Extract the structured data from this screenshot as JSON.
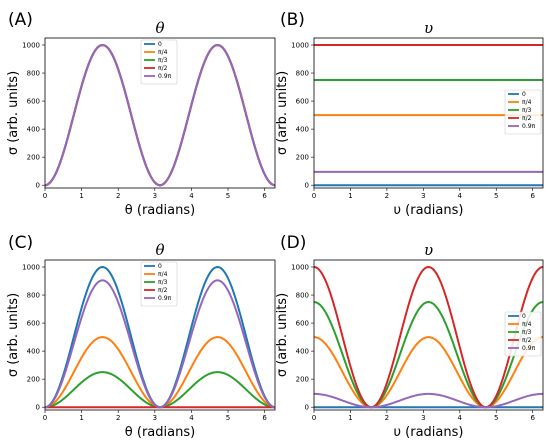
{
  "chart_data": [
    {
      "type": "line",
      "panel_label": "(A)",
      "title": "θ",
      "xlabel": "θ (radians)",
      "ylabel": "σ (arb. units)",
      "xlim": [
        0,
        6.283
      ],
      "ylim": [
        -20,
        1050
      ],
      "xticks": [
        0,
        1,
        2,
        3,
        4,
        5,
        6
      ],
      "yticks": [
        0,
        200,
        400,
        600,
        800,
        1000
      ],
      "formula": "1000 * sin(x)^2",
      "legend_position": "top-center",
      "series": [
        {
          "name": "0",
          "color": "#1f77b4",
          "x": [
            0,
            0.785,
            1.571,
            2.356,
            3.142,
            3.927,
            4.712,
            5.498,
            6.283
          ],
          "y": [
            0,
            500,
            1000,
            500,
            0,
            500,
            1000,
            500,
            0
          ]
        },
        {
          "name": "π/4",
          "color": "#ff7f0e",
          "x": [
            0,
            0.785,
            1.571,
            2.356,
            3.142,
            3.927,
            4.712,
            5.498,
            6.283
          ],
          "y": [
            0,
            500,
            1000,
            500,
            0,
            500,
            1000,
            500,
            0
          ]
        },
        {
          "name": "π/3",
          "color": "#2ca02c",
          "x": [
            0,
            0.785,
            1.571,
            2.356,
            3.142,
            3.927,
            4.712,
            5.498,
            6.283
          ],
          "y": [
            0,
            500,
            1000,
            500,
            0,
            500,
            1000,
            500,
            0
          ]
        },
        {
          "name": "π/2",
          "color": "#d62728",
          "x": [
            0,
            0.785,
            1.571,
            2.356,
            3.142,
            3.927,
            4.712,
            5.498,
            6.283
          ],
          "y": [
            0,
            500,
            1000,
            500,
            0,
            500,
            1000,
            500,
            0
          ]
        },
        {
          "name": "0.9π",
          "color": "#9467bd",
          "x": [
            0,
            0.785,
            1.571,
            2.356,
            3.142,
            3.927,
            4.712,
            5.498,
            6.283
          ],
          "y": [
            0,
            500,
            1000,
            500,
            0,
            500,
            1000,
            500,
            0
          ]
        }
      ]
    },
    {
      "type": "line",
      "panel_label": "(B)",
      "title": "υ",
      "xlabel": "υ (radians)",
      "ylabel": "σ (arb. units)",
      "xlim": [
        0,
        6.283
      ],
      "ylim": [
        -20,
        1050
      ],
      "xticks": [
        0,
        1,
        2,
        3,
        4,
        5,
        6
      ],
      "yticks": [
        0,
        200,
        400,
        600,
        800,
        1000
      ],
      "formula": "constant",
      "legend_position": "center-right",
      "series": [
        {
          "name": "0",
          "color": "#1f77b4",
          "x": [
            0,
            6.283
          ],
          "y": [
            0,
            0
          ]
        },
        {
          "name": "π/4",
          "color": "#ff7f0e",
          "x": [
            0,
            6.283
          ],
          "y": [
            500,
            500
          ]
        },
        {
          "name": "π/3",
          "color": "#2ca02c",
          "x": [
            0,
            6.283
          ],
          "y": [
            750,
            750
          ]
        },
        {
          "name": "π/2",
          "color": "#d62728",
          "x": [
            0,
            6.283
          ],
          "y": [
            1000,
            1000
          ]
        },
        {
          "name": "0.9π",
          "color": "#9467bd",
          "x": [
            0,
            6.283
          ],
          "y": [
            95,
            95
          ]
        }
      ]
    },
    {
      "type": "line",
      "panel_label": "(C)",
      "title": "θ",
      "xlabel": "θ (radians)",
      "ylabel": "σ (arb. units)",
      "xlim": [
        0,
        6.283
      ],
      "ylim": [
        -20,
        1050
      ],
      "xticks": [
        0,
        1,
        2,
        3,
        4,
        5,
        6
      ],
      "yticks": [
        0,
        200,
        400,
        600,
        800,
        1000
      ],
      "formula": "amp * sin(x)^2",
      "legend_position": "top-center",
      "series": [
        {
          "name": "0",
          "color": "#1f77b4",
          "amp": 1000,
          "x": [
            0,
            0.785,
            1.571,
            2.356,
            3.142,
            3.927,
            4.712,
            5.498,
            6.283
          ],
          "y": [
            0,
            500,
            1000,
            500,
            0,
            500,
            1000,
            500,
            0
          ]
        },
        {
          "name": "π/4",
          "color": "#ff7f0e",
          "amp": 500,
          "x": [
            0,
            0.785,
            1.571,
            2.356,
            3.142,
            3.927,
            4.712,
            5.498,
            6.283
          ],
          "y": [
            0,
            250,
            500,
            250,
            0,
            250,
            500,
            250,
            0
          ]
        },
        {
          "name": "π/3",
          "color": "#2ca02c",
          "amp": 250,
          "x": [
            0,
            0.785,
            1.571,
            2.356,
            3.142,
            3.927,
            4.712,
            5.498,
            6.283
          ],
          "y": [
            0,
            125,
            250,
            125,
            0,
            125,
            250,
            125,
            0
          ]
        },
        {
          "name": "π/2",
          "color": "#d62728",
          "amp": 0,
          "x": [
            0,
            0.785,
            1.571,
            2.356,
            3.142,
            3.927,
            4.712,
            5.498,
            6.283
          ],
          "y": [
            0,
            0,
            0,
            0,
            0,
            0,
            0,
            0,
            0
          ]
        },
        {
          "name": "0.9π",
          "color": "#9467bd",
          "amp": 905,
          "x": [
            0,
            0.785,
            1.571,
            2.356,
            3.142,
            3.927,
            4.712,
            5.498,
            6.283
          ],
          "y": [
            0,
            452,
            905,
            452,
            0,
            452,
            905,
            452,
            0
          ]
        }
      ]
    },
    {
      "type": "line",
      "panel_label": "(D)",
      "title": "υ",
      "xlabel": "υ (radians)",
      "ylabel": "σ (arb. units)",
      "xlim": [
        0,
        6.283
      ],
      "ylim": [
        -20,
        1050
      ],
      "xticks": [
        0,
        1,
        2,
        3,
        4,
        5,
        6
      ],
      "yticks": [
        0,
        200,
        400,
        600,
        800,
        1000
      ],
      "formula": "amp * cos(x)^2",
      "legend_position": "center-right",
      "series": [
        {
          "name": "0",
          "color": "#1f77b4",
          "amp": 0,
          "x": [
            0,
            0.785,
            1.571,
            2.356,
            3.142,
            3.927,
            4.712,
            5.498,
            6.283
          ],
          "y": [
            0,
            0,
            0,
            0,
            0,
            0,
            0,
            0,
            0
          ]
        },
        {
          "name": "π/4",
          "color": "#ff7f0e",
          "amp": 500,
          "x": [
            0,
            0.785,
            1.571,
            2.356,
            3.142,
            3.927,
            4.712,
            5.498,
            6.283
          ],
          "y": [
            500,
            250,
            0,
            250,
            500,
            250,
            0,
            250,
            500
          ]
        },
        {
          "name": "π/3",
          "color": "#2ca02c",
          "amp": 750,
          "x": [
            0,
            0.785,
            1.571,
            2.356,
            3.142,
            3.927,
            4.712,
            5.498,
            6.283
          ],
          "y": [
            750,
            375,
            0,
            375,
            750,
            375,
            0,
            375,
            750
          ]
        },
        {
          "name": "π/2",
          "color": "#d62728",
          "amp": 1000,
          "x": [
            0,
            0.785,
            1.571,
            2.356,
            3.142,
            3.927,
            4.712,
            5.498,
            6.283
          ],
          "y": [
            1000,
            500,
            0,
            500,
            1000,
            500,
            0,
            500,
            1000
          ]
        },
        {
          "name": "0.9π",
          "color": "#9467bd",
          "amp": 95,
          "x": [
            0,
            0.785,
            1.571,
            2.356,
            3.142,
            3.927,
            4.712,
            5.498,
            6.283
          ],
          "y": [
            95,
            48,
            0,
            48,
            95,
            48,
            0,
            48,
            95
          ]
        }
      ]
    }
  ]
}
